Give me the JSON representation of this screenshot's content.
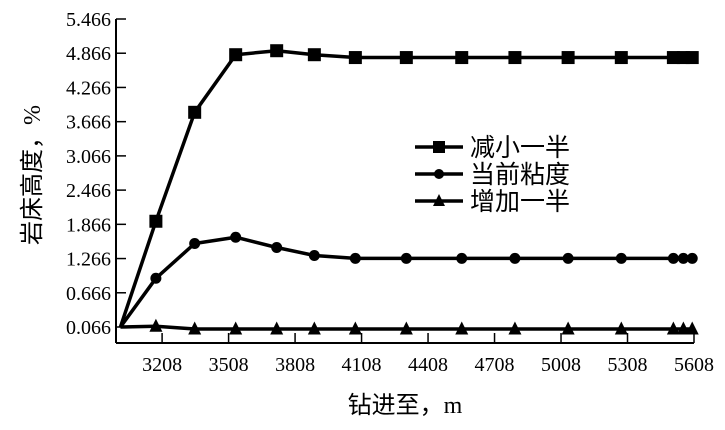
{
  "chart_data": {
    "type": "line",
    "title": "",
    "xlabel": "钻进至，m",
    "ylabel": "岩床高度，%",
    "xlim": [
      3000,
      5608
    ],
    "ylim": [
      0.066,
      5.466
    ],
    "xticks": [
      3208,
      3508,
      3808,
      4108,
      4408,
      4708,
      5008,
      5308,
      5608
    ],
    "yticks": [
      "0.066",
      "0.666",
      "1.266",
      "1.866",
      "2.466",
      "3.066",
      "3.666",
      "4.266",
      "4.866",
      "5.466"
    ],
    "grid": false,
    "legend_position": "center-right",
    "x": [
      3020,
      3180,
      3355,
      3540,
      3725,
      3895,
      4080,
      4310,
      4560,
      4800,
      5040,
      5280,
      5515,
      5560,
      5600
    ],
    "series": [
      {
        "name": "减小一半",
        "marker": "square",
        "values": [
          0.066,
          1.92,
          3.83,
          4.84,
          4.91,
          4.84,
          4.79,
          4.79,
          4.79,
          4.79,
          4.79,
          4.79,
          4.79,
          4.79,
          4.79
        ]
      },
      {
        "name": "当前粘度",
        "marker": "circle",
        "values": [
          0.066,
          0.92,
          1.53,
          1.64,
          1.46,
          1.32,
          1.27,
          1.27,
          1.27,
          1.27,
          1.27,
          1.27,
          1.27,
          1.27,
          1.27
        ]
      },
      {
        "name": "增加一半",
        "marker": "triangle",
        "values": [
          0.066,
          0.08,
          0.03,
          0.03,
          0.03,
          0.03,
          0.03,
          0.03,
          0.03,
          0.03,
          0.03,
          0.03,
          0.03,
          0.03,
          0.03
        ]
      }
    ]
  }
}
